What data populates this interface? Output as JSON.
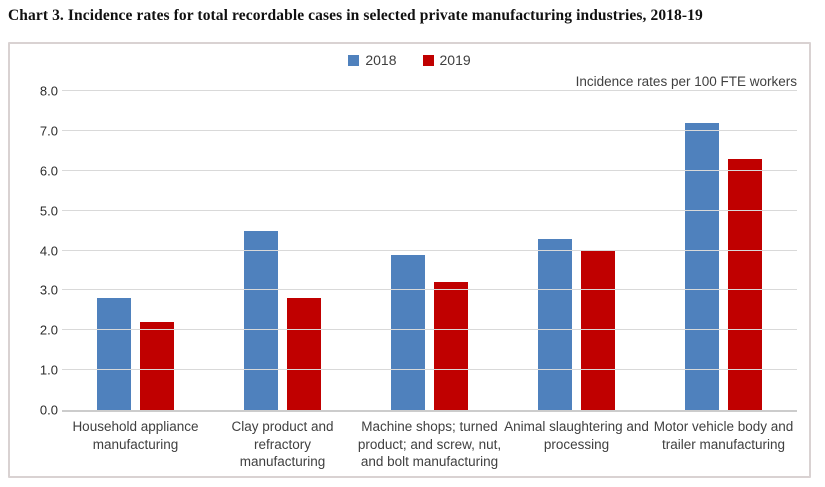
{
  "chart_data": {
    "type": "bar",
    "title": "Chart 3. Incidence rates for total recordable cases in selected private manufacturing industries, 2018-19",
    "annotation": "Incidence rates per 100 FTE workers",
    "categories": [
      "Household appliance manufacturing",
      "Clay product and refractory manufacturing",
      "Machine shops; turned product; and screw, nut, and bolt manufacturing",
      "Animal slaughtering and processing",
      "Motor vehicle body and trailer manufacturing"
    ],
    "series": [
      {
        "name": "2018",
        "color": "#4f81bd",
        "values": [
          2.8,
          4.5,
          3.9,
          4.3,
          7.2
        ]
      },
      {
        "name": "2019",
        "color": "#c00000",
        "values": [
          2.2,
          2.8,
          3.2,
          4.0,
          6.3
        ]
      }
    ],
    "ylim": [
      0,
      8
    ],
    "ytick_step": 1,
    "ytick_labels": [
      "0.0",
      "1.0",
      "2.0",
      "3.0",
      "4.0",
      "5.0",
      "6.0",
      "7.0",
      "8.0"
    ],
    "grid": true,
    "legend_position": "top-center",
    "xlabel": "",
    "ylabel": ""
  },
  "colors": {
    "series_2018": "#4f81bd",
    "series_2019": "#c00000",
    "gridline": "#d9d9d9",
    "axis_baseline": "#cccccc",
    "text": "#404040",
    "box_border": "#d9d2d2"
  }
}
